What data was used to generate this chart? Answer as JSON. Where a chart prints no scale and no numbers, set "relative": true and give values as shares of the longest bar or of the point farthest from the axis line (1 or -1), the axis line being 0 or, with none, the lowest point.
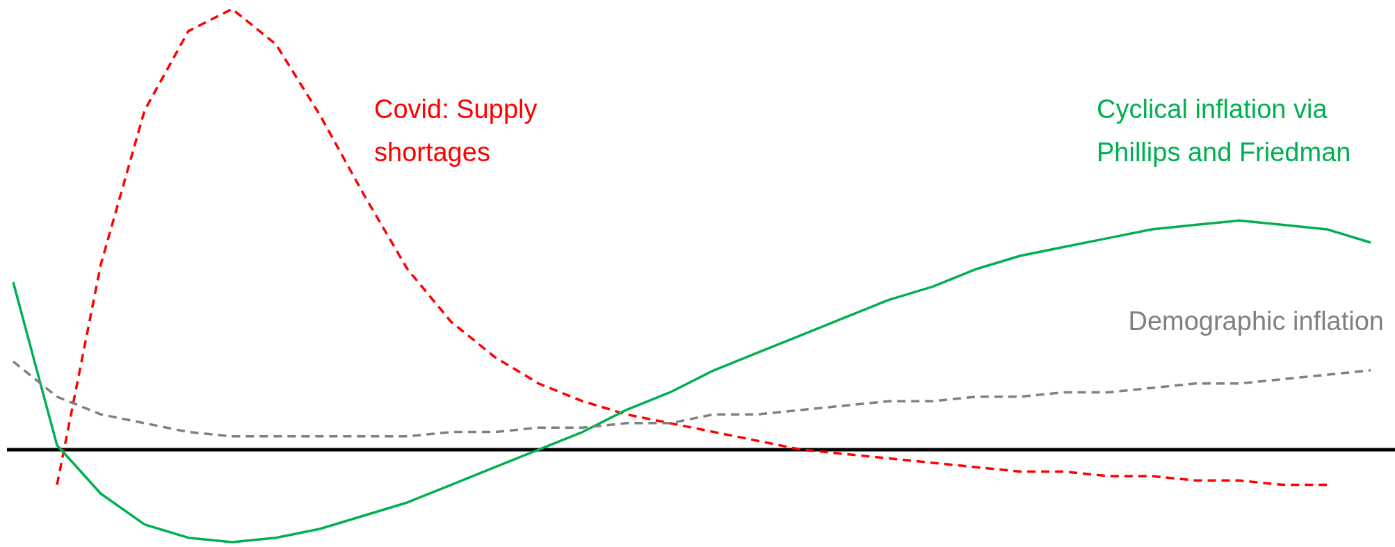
{
  "chart_data": {
    "type": "line",
    "relative": true,
    "categories": [
      null,
      null,
      null,
      null,
      null,
      null,
      null,
      null,
      null,
      null,
      null,
      null,
      null,
      null,
      null,
      null,
      null,
      null,
      null,
      null,
      null,
      null,
      null,
      null,
      null,
      null,
      null,
      null,
      null,
      null,
      null,
      null
    ],
    "series": [
      {
        "name": "Covid: Supply shortages",
        "color": "#ff0000",
        "line_style": "dashed",
        "values": [
          null,
          -0.08,
          0.42,
          0.77,
          0.95,
          1.0,
          0.92,
          0.76,
          0.58,
          0.41,
          0.29,
          0.21,
          0.15,
          0.11,
          0.08,
          0.06,
          0.04,
          0.02,
          0.0,
          -0.01,
          -0.02,
          -0.03,
          -0.04,
          -0.05,
          -0.05,
          -0.06,
          -0.06,
          -0.07,
          -0.07,
          -0.08,
          -0.08,
          null
        ]
      },
      {
        "name": "Cyclical inflation via Phillips and Friedman",
        "color": "#00b050",
        "line_style": "solid",
        "values": [
          0.38,
          0.01,
          -0.1,
          -0.17,
          -0.2,
          -0.21,
          -0.2,
          -0.18,
          -0.15,
          -0.12,
          -0.08,
          -0.04,
          0.0,
          0.04,
          0.09,
          0.13,
          0.18,
          0.22,
          0.26,
          0.3,
          0.34,
          0.37,
          0.41,
          0.44,
          0.46,
          0.48,
          0.5,
          0.51,
          0.52,
          0.51,
          0.5,
          0.47
        ]
      },
      {
        "name": "Demographic inflation",
        "color": "#808080",
        "line_style": "dashed",
        "values": [
          0.2,
          0.12,
          0.08,
          0.06,
          0.04,
          0.03,
          0.03,
          0.03,
          0.03,
          0.03,
          0.04,
          0.04,
          0.05,
          0.05,
          0.06,
          0.06,
          0.08,
          0.08,
          0.09,
          0.1,
          0.11,
          0.11,
          0.12,
          0.12,
          0.13,
          0.13,
          0.14,
          0.15,
          0.15,
          0.16,
          0.17,
          0.18
        ]
      }
    ]
  }
}
